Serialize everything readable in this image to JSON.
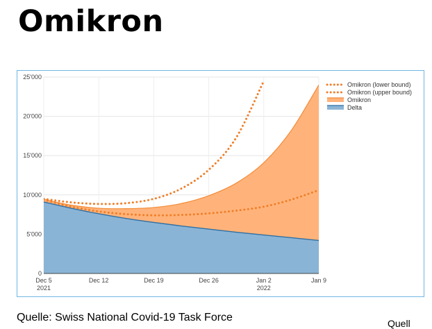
{
  "page": {
    "title": "Omikron",
    "source": "Quelle: Swiss National Covid-19 Task Force",
    "corner_text": "Quell"
  },
  "chart_data": {
    "type": "area",
    "title": "",
    "xlabel": "",
    "ylabel": "",
    "ylim": [
      0,
      25000
    ],
    "yticks": [
      0,
      5000,
      10000,
      15000,
      20000,
      25000
    ],
    "ytick_labels": [
      "0",
      "5'000",
      "10'000",
      "15'000",
      "20'000",
      "25'000"
    ],
    "xticks": [
      0,
      7,
      14,
      21,
      28,
      35
    ],
    "xtick_labels": [
      [
        "Dec 5",
        "2021"
      ],
      [
        "Dec 12",
        ""
      ],
      [
        "Dec 19",
        ""
      ],
      [
        "Dec 26",
        ""
      ],
      [
        "Jan 2",
        "2022"
      ],
      [
        "Jan 9",
        ""
      ]
    ],
    "x": [
      0,
      3.5,
      7,
      10.5,
      14,
      17.5,
      21,
      24.5,
      28,
      31.5,
      35
    ],
    "grid": true,
    "legend_position": "top-right",
    "series": [
      {
        "name": "Omikron (lower bound)",
        "style": "dotted",
        "color": "#f07f2a",
        "values": [
          9500,
          9050,
          8850,
          8950,
          9500,
          10800,
          13200,
          17300,
          24500,
          null,
          null
        ]
      },
      {
        "name": "Omikron (upper bound)",
        "style": "dotted",
        "color": "#f07f2a",
        "values": [
          9400,
          8500,
          7900,
          7550,
          7400,
          7450,
          7650,
          8000,
          8500,
          9400,
          10600
        ]
      },
      {
        "name": "Omikron",
        "style": "area",
        "color": "#ffb37a",
        "line_color": "#f28c3a",
        "values": [
          9450,
          8700,
          8300,
          8250,
          8400,
          8900,
          9900,
          11500,
          14100,
          18200,
          24000
        ]
      },
      {
        "name": "Delta",
        "style": "area",
        "color": "#8ab4d6",
        "line_color": "#2e6fa3",
        "values": [
          9100,
          8300,
          7600,
          7000,
          6500,
          6050,
          5650,
          5250,
          4900,
          4550,
          4200
        ]
      }
    ]
  }
}
